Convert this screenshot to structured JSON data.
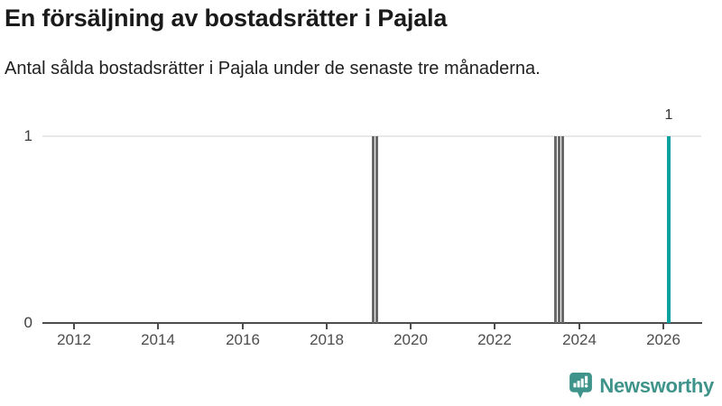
{
  "header": {
    "title": "En försäljning av bostadsrätter i Pajala",
    "subtitle": "Antal sålda bostadsrätter i Pajala under de senaste tre månaderna."
  },
  "footer": {
    "logo_text": "Newsworthy",
    "logo_icon": "newsworthy-speech-bubble-bar-chart-icon",
    "logo_color": "#3E948B"
  },
  "chart_data": {
    "type": "bar",
    "title": "En försäljning av bostadsrätter i Pajala",
    "subtitle": "Antal sålda bostadsrätter i Pajala under de senaste tre månaderna.",
    "xlabel": "",
    "ylabel": "",
    "ylim": [
      0,
      1
    ],
    "yticks": [
      0,
      1
    ],
    "xticks": [
      2012,
      2014,
      2016,
      2018,
      2020,
      2022,
      2024,
      2026
    ],
    "x_range": [
      2011.25,
      2026.9
    ],
    "grid": "horizontal gridline at y=1 only",
    "legend": "none",
    "bars": [
      {
        "x": 2019.11,
        "value": 1,
        "series": "past"
      },
      {
        "x": 2019.2,
        "value": 1,
        "series": "past"
      },
      {
        "x": 2023.44,
        "value": 1,
        "series": "past"
      },
      {
        "x": 2023.52,
        "value": 1,
        "series": "past"
      },
      {
        "x": 2023.6,
        "value": 1,
        "series": "past"
      },
      {
        "x": 2026.12,
        "value": 1,
        "series": "latest",
        "label": "1"
      }
    ],
    "colors": {
      "past": "#6a6a6a",
      "latest": "#0BA2A0",
      "grid": "#e8e8e8",
      "axis": "#4d4d4d",
      "tick_text": "#4d4d4d"
    }
  }
}
